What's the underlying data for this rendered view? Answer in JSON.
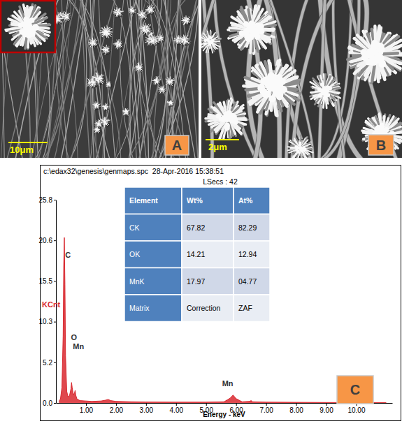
{
  "figure": {
    "panels": [
      {
        "label": "A",
        "scale_bar": "10μm"
      },
      {
        "label": "B",
        "scale_bar": "2μm"
      },
      {
        "label": "C"
      }
    ]
  },
  "header": {
    "line": "c:\\edax32\\genesis\\genmaps.spc  28-Apr-2016 15:38:51",
    "lsecs": "LSecs : 42"
  },
  "table": {
    "header": [
      "Element",
      "Wt%",
      "At%"
    ],
    "rows": [
      [
        "CK",
        "67.82",
        "82.29"
      ],
      [
        "OK",
        "14.21",
        "12.94"
      ],
      [
        "MnK",
        "17.97",
        "04.77"
      ],
      [
        "Matrix",
        "Correction",
        "ZAF"
      ]
    ]
  },
  "chart_data": {
    "type": "area",
    "x_label": "Energy - keV",
    "y_label": "KCnt",
    "color": "#d9282f",
    "grid": false,
    "x": [
      0.1,
      0.15,
      0.2,
      0.24,
      0.26,
      0.28,
      0.3,
      0.32,
      0.36,
      0.4,
      0.45,
      0.5,
      0.52,
      0.54,
      0.58,
      0.62,
      0.64,
      0.66,
      0.7,
      0.8,
      1.0,
      1.2,
      1.5,
      1.65,
      1.74,
      1.82,
      2.0,
      2.5,
      3.0,
      4.0,
      5.0,
      5.6,
      5.8,
      5.9,
      6.0,
      6.2,
      6.45,
      6.5,
      6.55,
      7.0,
      8.0,
      9.0,
      10.0,
      11.0
    ],
    "values": [
      0.2,
      0.5,
      2.0,
      8.5,
      17.5,
      21.0,
      15.0,
      6.0,
      1.5,
      0.8,
      0.9,
      1.8,
      2.6,
      2.0,
      1.0,
      1.3,
      1.6,
      1.0,
      0.5,
      0.3,
      0.25,
      0.2,
      0.25,
      0.35,
      0.45,
      0.3,
      0.2,
      0.15,
      0.12,
      0.1,
      0.1,
      0.15,
      0.6,
      1.0,
      0.55,
      0.15,
      0.2,
      0.3,
      0.15,
      0.1,
      0.08,
      0.06,
      0.05,
      0.05
    ],
    "xlim": [
      0,
      11.2
    ],
    "xticks": [
      {
        "value": 1,
        "label": "1.00"
      },
      {
        "value": 2,
        "label": "2.00"
      },
      {
        "value": 3,
        "label": "3.00"
      },
      {
        "value": 4,
        "label": "4.00"
      },
      {
        "value": 5,
        "label": "5.00"
      },
      {
        "value": 6,
        "label": "6.00"
      },
      {
        "value": 7,
        "label": "7.00"
      },
      {
        "value": 8,
        "label": "8.00"
      },
      {
        "value": 9,
        "label": "9.00"
      },
      {
        "value": 10,
        "label": "10.00"
      }
    ],
    "ylim": [
      0,
      25.8
    ],
    "yticks": [
      {
        "value": 0,
        "label": "0.0"
      },
      {
        "value": 5.16,
        "label": "5.2"
      },
      {
        "value": 10.32,
        "label": "10.3"
      },
      {
        "value": 15.48,
        "label": "15.5"
      },
      {
        "value": 20.64,
        "label": "20.6"
      },
      25.8
    ],
    "annotations": [
      {
        "text": "C",
        "x": 0.4,
        "y": 18.4
      },
      {
        "text": "O",
        "x": 0.6,
        "y": 8.0
      },
      {
        "text": "Mn",
        "x": 0.75,
        "y": 6.8
      },
      {
        "text": "Mn",
        "x": 5.72,
        "y": 2.1
      }
    ]
  }
}
